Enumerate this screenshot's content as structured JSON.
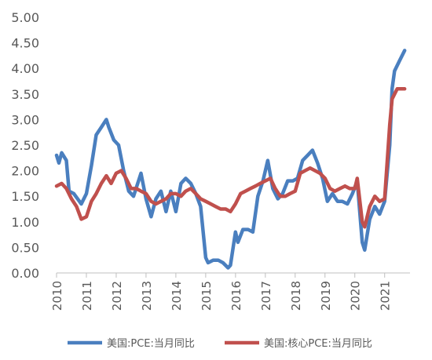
{
  "chart_data": {
    "type": "line",
    "title": "",
    "xlabel": "",
    "ylabel": "",
    "ylim": [
      0,
      5
    ],
    "y_ticks": [
      "0.00",
      "0.50",
      "1.00",
      "1.50",
      "2.00",
      "2.50",
      "3.00",
      "3.50",
      "4.00",
      "4.50",
      "5.00"
    ],
    "x_ticks": [
      "2010",
      "2011",
      "2012",
      "2013",
      "2014",
      "2015",
      "2016",
      "2017",
      "2018",
      "2019",
      "2020",
      "2021"
    ],
    "x_range": [
      2010.0,
      2021.85
    ],
    "grid": false,
    "legend_position": "bottom",
    "series": [
      {
        "name": "美国:PCE:当月同比",
        "color": "#4a7fbf",
        "points": [
          [
            2010.0,
            2.3
          ],
          [
            2010.08,
            2.15
          ],
          [
            2010.17,
            2.35
          ],
          [
            2010.33,
            2.2
          ],
          [
            2010.42,
            1.6
          ],
          [
            2010.58,
            1.55
          ],
          [
            2010.83,
            1.35
          ],
          [
            2011.0,
            1.55
          ],
          [
            2011.17,
            2.1
          ],
          [
            2011.33,
            2.7
          ],
          [
            2011.5,
            2.85
          ],
          [
            2011.67,
            3.0
          ],
          [
            2011.75,
            2.85
          ],
          [
            2011.92,
            2.6
          ],
          [
            2012.08,
            2.5
          ],
          [
            2012.25,
            2.0
          ],
          [
            2012.42,
            1.6
          ],
          [
            2012.58,
            1.5
          ],
          [
            2012.75,
            1.8
          ],
          [
            2012.83,
            1.95
          ],
          [
            2013.0,
            1.45
          ],
          [
            2013.17,
            1.1
          ],
          [
            2013.33,
            1.45
          ],
          [
            2013.5,
            1.6
          ],
          [
            2013.67,
            1.2
          ],
          [
            2013.83,
            1.6
          ],
          [
            2014.0,
            1.2
          ],
          [
            2014.17,
            1.75
          ],
          [
            2014.33,
            1.85
          ],
          [
            2014.5,
            1.75
          ],
          [
            2014.67,
            1.55
          ],
          [
            2014.83,
            1.3
          ],
          [
            2015.0,
            0.3
          ],
          [
            2015.08,
            0.2
          ],
          [
            2015.25,
            0.25
          ],
          [
            2015.42,
            0.25
          ],
          [
            2015.58,
            0.2
          ],
          [
            2015.75,
            0.1
          ],
          [
            2015.83,
            0.15
          ],
          [
            2016.0,
            0.8
          ],
          [
            2016.08,
            0.6
          ],
          [
            2016.25,
            0.85
          ],
          [
            2016.42,
            0.85
          ],
          [
            2016.58,
            0.8
          ],
          [
            2016.75,
            1.5
          ],
          [
            2016.92,
            1.8
          ],
          [
            2017.08,
            2.2
          ],
          [
            2017.25,
            1.65
          ],
          [
            2017.42,
            1.45
          ],
          [
            2017.58,
            1.55
          ],
          [
            2017.75,
            1.8
          ],
          [
            2017.92,
            1.8
          ],
          [
            2018.08,
            1.85
          ],
          [
            2018.25,
            2.2
          ],
          [
            2018.42,
            2.3
          ],
          [
            2018.58,
            2.4
          ],
          [
            2018.75,
            2.15
          ],
          [
            2018.92,
            1.85
          ],
          [
            2019.08,
            1.4
          ],
          [
            2019.25,
            1.55
          ],
          [
            2019.42,
            1.4
          ],
          [
            2019.58,
            1.4
          ],
          [
            2019.75,
            1.35
          ],
          [
            2019.92,
            1.55
          ],
          [
            2020.08,
            1.8
          ],
          [
            2020.25,
            0.6
          ],
          [
            2020.33,
            0.45
          ],
          [
            2020.5,
            1.05
          ],
          [
            2020.67,
            1.3
          ],
          [
            2020.83,
            1.15
          ],
          [
            2021.0,
            1.4
          ],
          [
            2021.17,
            2.5
          ],
          [
            2021.25,
            3.6
          ],
          [
            2021.33,
            3.95
          ],
          [
            2021.5,
            4.15
          ],
          [
            2021.67,
            4.35
          ]
        ]
      },
      {
        "name": "美国:核心PCE:当月同比",
        "color": "#c0504d",
        "points": [
          [
            2010.0,
            1.7
          ],
          [
            2010.17,
            1.75
          ],
          [
            2010.33,
            1.65
          ],
          [
            2010.5,
            1.45
          ],
          [
            2010.67,
            1.3
          ],
          [
            2010.83,
            1.05
          ],
          [
            2011.0,
            1.1
          ],
          [
            2011.17,
            1.4
          ],
          [
            2011.33,
            1.55
          ],
          [
            2011.5,
            1.75
          ],
          [
            2011.67,
            1.9
          ],
          [
            2011.83,
            1.75
          ],
          [
            2012.0,
            1.95
          ],
          [
            2012.17,
            2.0
          ],
          [
            2012.33,
            1.85
          ],
          [
            2012.5,
            1.65
          ],
          [
            2012.67,
            1.65
          ],
          [
            2012.83,
            1.6
          ],
          [
            2013.0,
            1.55
          ],
          [
            2013.17,
            1.4
          ],
          [
            2013.33,
            1.35
          ],
          [
            2013.5,
            1.4
          ],
          [
            2013.67,
            1.45
          ],
          [
            2013.83,
            1.55
          ],
          [
            2014.0,
            1.55
          ],
          [
            2014.17,
            1.5
          ],
          [
            2014.33,
            1.6
          ],
          [
            2014.5,
            1.65
          ],
          [
            2014.67,
            1.55
          ],
          [
            2014.83,
            1.45
          ],
          [
            2015.0,
            1.4
          ],
          [
            2015.17,
            1.35
          ],
          [
            2015.33,
            1.3
          ],
          [
            2015.5,
            1.25
          ],
          [
            2015.67,
            1.25
          ],
          [
            2015.83,
            1.2
          ],
          [
            2016.0,
            1.35
          ],
          [
            2016.17,
            1.55
          ],
          [
            2016.33,
            1.6
          ],
          [
            2016.5,
            1.65
          ],
          [
            2016.67,
            1.7
          ],
          [
            2016.83,
            1.75
          ],
          [
            2017.0,
            1.8
          ],
          [
            2017.17,
            1.85
          ],
          [
            2017.33,
            1.65
          ],
          [
            2017.5,
            1.5
          ],
          [
            2017.67,
            1.5
          ],
          [
            2017.83,
            1.55
          ],
          [
            2018.0,
            1.6
          ],
          [
            2018.17,
            1.95
          ],
          [
            2018.33,
            2.0
          ],
          [
            2018.5,
            2.05
          ],
          [
            2018.67,
            2.0
          ],
          [
            2018.83,
            1.95
          ],
          [
            2019.0,
            1.85
          ],
          [
            2019.17,
            1.65
          ],
          [
            2019.33,
            1.6
          ],
          [
            2019.5,
            1.65
          ],
          [
            2019.67,
            1.7
          ],
          [
            2019.83,
            1.65
          ],
          [
            2020.0,
            1.65
          ],
          [
            2020.08,
            1.85
          ],
          [
            2020.25,
            1.0
          ],
          [
            2020.33,
            0.9
          ],
          [
            2020.5,
            1.3
          ],
          [
            2020.67,
            1.5
          ],
          [
            2020.83,
            1.4
          ],
          [
            2021.0,
            1.45
          ],
          [
            2021.17,
            2.9
          ],
          [
            2021.25,
            3.4
          ],
          [
            2021.42,
            3.6
          ],
          [
            2021.67,
            3.6
          ]
        ]
      }
    ]
  }
}
